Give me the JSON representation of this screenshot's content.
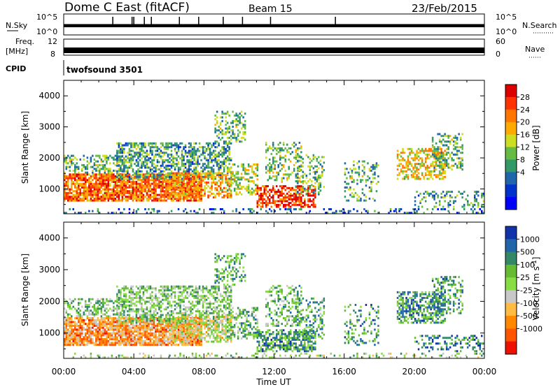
{
  "header": {
    "station": "Dome C East (fitACF)",
    "beam": "Beam 15",
    "date": "23/Feb/2015"
  },
  "nsky_panel": {
    "left_label": "N.Sky",
    "left_ticks": [
      "10^5",
      "10^0"
    ],
    "right_ticks": [
      "10^5",
      "10^0"
    ],
    "right_label": "N.Search"
  },
  "freq_panel": {
    "left_label_1": "Freq.",
    "left_label_2": "[MHz]",
    "left_ticks": [
      "12",
      "8"
    ],
    "right_ticks": [
      "60",
      "0"
    ],
    "right_label": "Nave"
  },
  "cpid": {
    "label": "CPID",
    "value": "twofsound 3501"
  },
  "chart_data": [
    {
      "type": "heatmap",
      "quantity": "Power",
      "ylabel": "Slant Range [km]",
      "ylim": [
        200,
        4500
      ],
      "yticks": [
        1000,
        2000,
        3000,
        4000
      ],
      "xlim_hours": [
        0,
        24
      ],
      "colorbar": {
        "label": "Power [dB]",
        "ticks": [
          "28",
          "24",
          "20",
          "16",
          "12",
          "8",
          "4"
        ],
        "colors": [
          "#dd0000",
          "#ff3300",
          "#ff7700",
          "#ffaa00",
          "#ccdd22",
          "#66bb44",
          "#339966",
          "#2266aa",
          "#0033cc",
          "#0000ff"
        ]
      }
    },
    {
      "type": "heatmap",
      "quantity": "Velocity",
      "ylabel": "Slant Range [km]",
      "ylim": [
        200,
        4500
      ],
      "yticks": [
        1000,
        2000,
        3000,
        4000
      ],
      "xlim_hours": [
        0,
        24
      ],
      "xlabel": "Time UT",
      "xticks": [
        "00:00",
        "04:00",
        "08:00",
        "12:00",
        "16:00",
        "20:00",
        "00:00"
      ],
      "colorbar": {
        "label": "Velocity [m s",
        "label_sup": "-1",
        "label_end": "]",
        "ticks": [
          "1000",
          "500",
          "100",
          "25",
          "-25",
          "-100",
          "-500",
          "-1000"
        ],
        "colors": [
          "#1133aa",
          "#2266aa",
          "#338866",
          "#66bb33",
          "#88dd44",
          "#c8c8c8",
          "#ffbb44",
          "#ff8800",
          "#ff5500",
          "#ee1100"
        ]
      }
    }
  ]
}
